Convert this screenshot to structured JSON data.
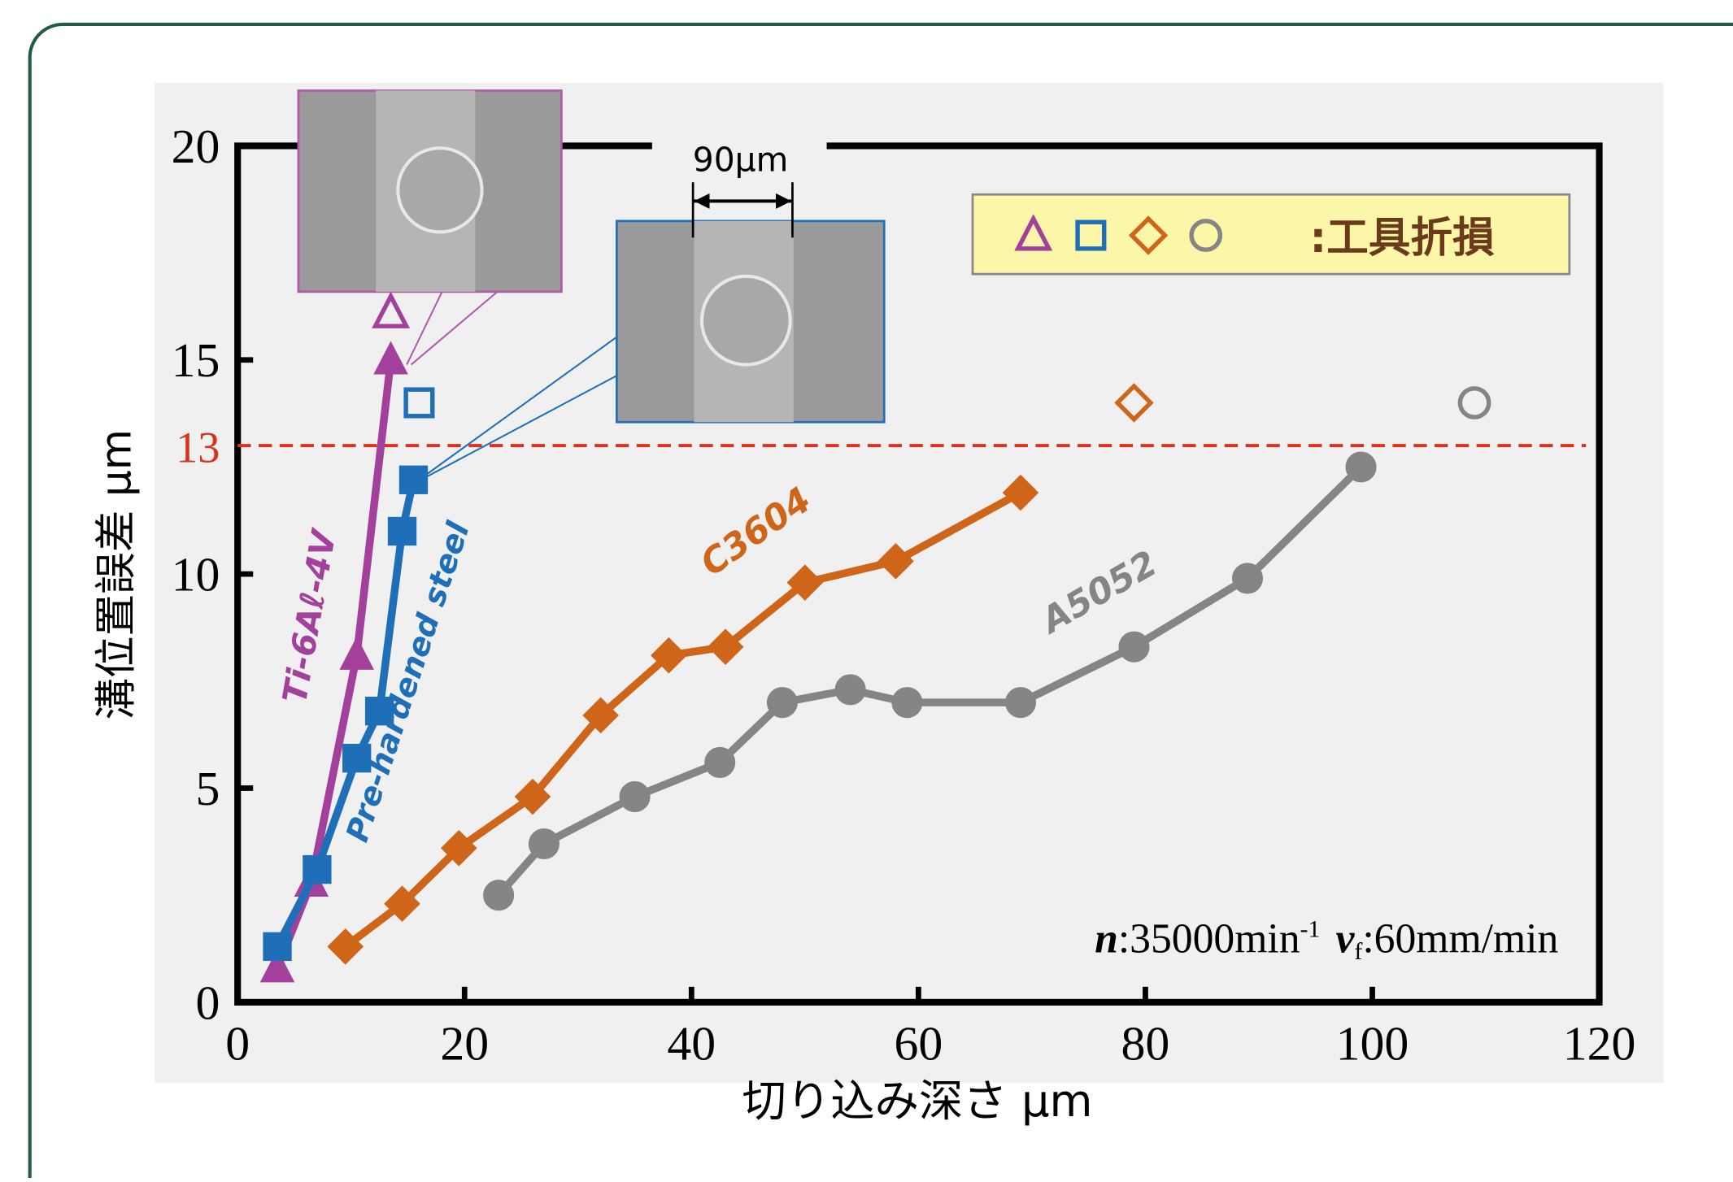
{
  "chart_data": {
    "type": "line",
    "xlabel": "切り込み深さ μm",
    "ylabel": "溝位置誤差 μm",
    "xlim": [
      0,
      120
    ],
    "ylim": [
      0,
      20
    ],
    "xticks": [
      0,
      20,
      40,
      60,
      80,
      100,
      120
    ],
    "yticks": [
      0,
      5,
      10,
      15,
      20
    ],
    "threshold": 13,
    "threshold_color": "#d8331f",
    "legend_label": ":工具折損",
    "scale_label": "90μm",
    "conditions": [
      "n",
      ":35000min",
      "-1",
      "v",
      "f",
      ":60mm/min"
    ],
    "series": [
      {
        "name": "Ti-6Aℓ-4V",
        "color": "#a2409b",
        "marker": "triangle",
        "x": [
          3.5,
          6.5,
          10.5,
          13.5
        ],
        "values": [
          0.8,
          2.8,
          8.1,
          15.0
        ],
        "failure": {
          "x": 13.5,
          "y": 16.1
        }
      },
      {
        "name": "Pre-hardened steel",
        "color": "#1f6fb8",
        "marker": "square",
        "x": [
          3.5,
          7,
          10.5,
          12.5,
          14.5,
          15.5
        ],
        "values": [
          1.3,
          3.1,
          5.7,
          6.8,
          11.0,
          12.2
        ],
        "failure": {
          "x": 16,
          "y": 14.0
        }
      },
      {
        "name": "C3604",
        "color": "#cf6518",
        "marker": "diamond",
        "x": [
          9.5,
          14.5,
          19.5,
          26,
          32,
          38,
          43,
          50,
          58,
          69
        ],
        "values": [
          1.3,
          2.3,
          3.6,
          4.8,
          6.7,
          8.1,
          8.3,
          9.8,
          10.3,
          11.9
        ],
        "failure": {
          "x": 79,
          "y": 14.0
        }
      },
      {
        "name": "A5052",
        "color": "#858585",
        "marker": "circle",
        "x": [
          23,
          27,
          35,
          42.5,
          48,
          54,
          59,
          69,
          79,
          89,
          99
        ],
        "values": [
          2.5,
          3.7,
          4.8,
          5.6,
          7.0,
          7.3,
          7.0,
          7.0,
          8.3,
          9.9,
          12.5
        ],
        "failure": {
          "x": 109,
          "y": 14.0
        }
      }
    ]
  }
}
